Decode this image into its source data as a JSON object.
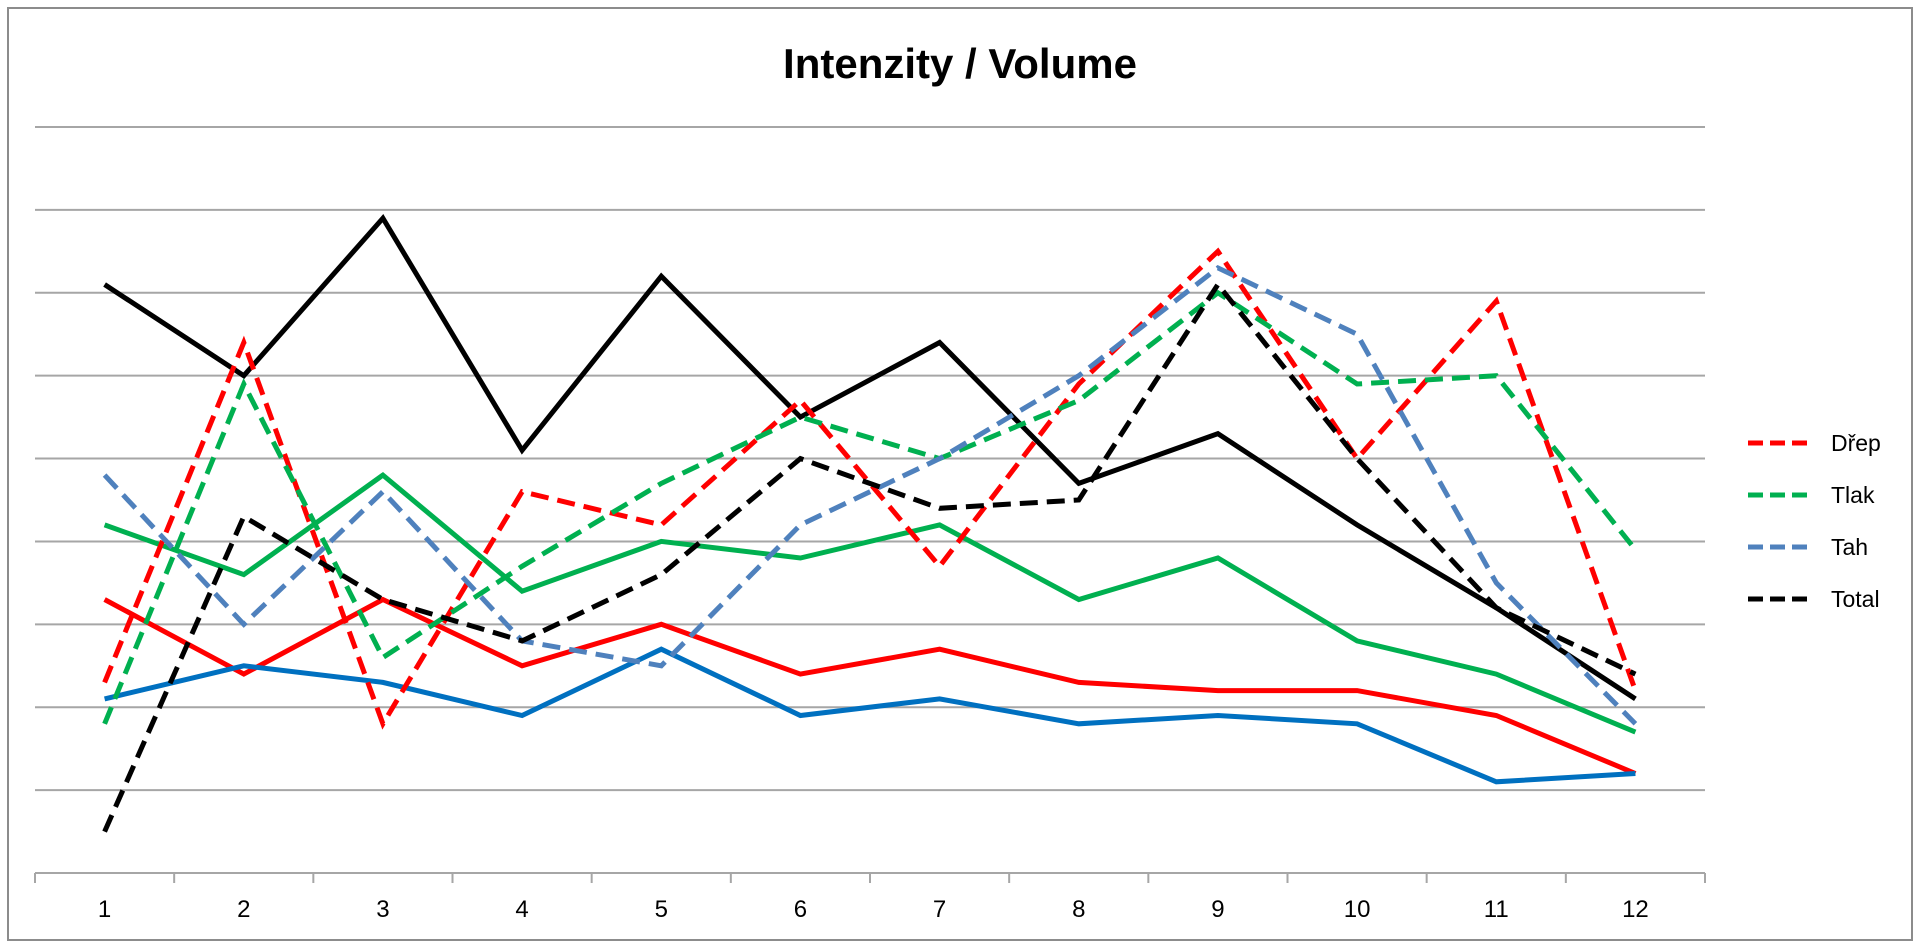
{
  "chart_data": {
    "type": "line",
    "title": "Intenzity / Volume",
    "xlabel": "",
    "ylabel": "",
    "ylim": [
      0,
      9
    ],
    "grid": true,
    "legend_position": "right",
    "categories": [
      "1",
      "2",
      "3",
      "4",
      "5",
      "6",
      "7",
      "8",
      "9",
      "10",
      "11",
      "12"
    ],
    "series": [
      {
        "name": "Dřep",
        "style": "dashed",
        "color": "#ff0000",
        "values": [
          2.3,
          6.4,
          1.8,
          4.6,
          4.2,
          5.7,
          3.7,
          5.9,
          7.5,
          5.0,
          6.9,
          2.2
        ]
      },
      {
        "name": "Tlak",
        "style": "dashed",
        "color": "#00b050",
        "values": [
          1.8,
          5.9,
          2.6,
          3.7,
          4.7,
          5.5,
          5.0,
          5.7,
          7.0,
          5.9,
          6.0,
          3.9
        ]
      },
      {
        "name": "Tah",
        "style": "dashed",
        "color": "#4f81bd",
        "values": [
          4.8,
          3.0,
          4.6,
          2.8,
          2.5,
          4.2,
          5.0,
          6.0,
          7.3,
          6.5,
          3.5,
          1.8
        ]
      },
      {
        "name": "Total",
        "style": "dashed",
        "color": "#000000",
        "values": [
          0.5,
          4.3,
          3.3,
          2.8,
          3.6,
          5.0,
          4.4,
          4.5,
          7.1,
          5.0,
          3.2,
          2.4
        ]
      },
      {
        "name": "",
        "style": "solid",
        "color": "#000000",
        "values": [
          7.1,
          6.0,
          7.9,
          5.1,
          7.2,
          5.5,
          6.4,
          4.7,
          5.3,
          4.2,
          3.2,
          2.1
        ]
      },
      {
        "name": "",
        "style": "solid",
        "color": "#00b050",
        "values": [
          4.2,
          3.6,
          4.8,
          3.4,
          4.0,
          3.8,
          4.2,
          3.3,
          3.8,
          2.8,
          2.4,
          1.7
        ]
      },
      {
        "name": "",
        "style": "solid",
        "color": "#ff0000",
        "values": [
          3.3,
          2.4,
          3.3,
          2.5,
          3.0,
          2.4,
          2.7,
          2.3,
          2.2,
          2.2,
          1.9,
          1.2
        ]
      },
      {
        "name": "",
        "style": "solid",
        "color": "#0070c0",
        "values": [
          2.1,
          2.5,
          2.3,
          1.9,
          2.7,
          1.9,
          2.1,
          1.8,
          1.9,
          1.8,
          1.1,
          1.2
        ]
      }
    ]
  }
}
